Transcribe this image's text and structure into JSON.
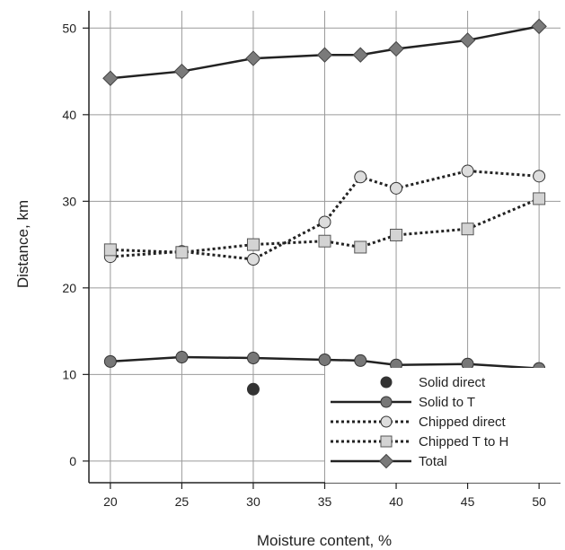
{
  "chart_data": {
    "type": "line",
    "title": "",
    "xlabel": "Moisture content, %",
    "ylabel": "Distance, km",
    "xlim": [
      18.5,
      51.5
    ],
    "ylim": [
      -2.5,
      52
    ],
    "xticks": [
      20,
      25,
      30,
      35,
      40,
      45,
      50
    ],
    "yticks": [
      0,
      10,
      20,
      30,
      40,
      50
    ],
    "grid": true,
    "legend_position": "bottom-right",
    "series": [
      {
        "name": "Solid direct",
        "style": "marker-only",
        "marker": "circle",
        "line_color": "none",
        "marker_fill": "#333333",
        "x": [
          30
        ],
        "y": [
          8.3
        ]
      },
      {
        "name": "Solid to T",
        "style": "solid",
        "marker": "circle",
        "line_color": "#222222",
        "marker_fill": "#777777",
        "x": [
          20,
          25,
          30,
          35,
          37.5,
          40,
          45,
          50
        ],
        "y": [
          11.5,
          12.0,
          11.9,
          11.7,
          11.6,
          11.1,
          11.2,
          10.7
        ]
      },
      {
        "name": "Chipped direct",
        "style": "dotted",
        "marker": "circle",
        "line_color": "#222222",
        "marker_fill": "#dddddd",
        "x": [
          20,
          25,
          30,
          35,
          37.5,
          40,
          45,
          50
        ],
        "y": [
          23.6,
          24.2,
          23.3,
          27.6,
          32.8,
          31.5,
          33.5,
          32.9
        ]
      },
      {
        "name": "Chipped T to H",
        "style": "dotted",
        "marker": "square",
        "line_color": "#222222",
        "marker_fill": "#d3d3d3",
        "x": [
          20,
          25,
          30,
          35,
          37.5,
          40,
          45,
          50
        ],
        "y": [
          24.4,
          24.1,
          25.0,
          25.4,
          24.7,
          26.1,
          26.8,
          30.3
        ]
      },
      {
        "name": "Total",
        "style": "solid",
        "marker": "diamond",
        "line_color": "#222222",
        "marker_fill": "#7a7a7a",
        "x": [
          20,
          25,
          30,
          35,
          37.5,
          40,
          45,
          50
        ],
        "y": [
          44.2,
          45.0,
          46.5,
          46.9,
          46.9,
          47.6,
          48.6,
          50.2
        ]
      }
    ]
  }
}
